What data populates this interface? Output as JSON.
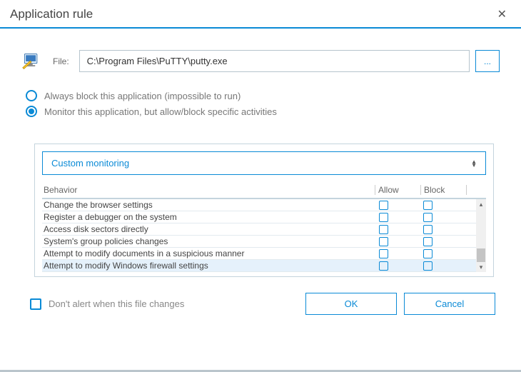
{
  "colors": {
    "accent": "#0a8ad6",
    "border": "#b6c4cd",
    "text_muted": "#777",
    "highlight_row": "#e5f1fb"
  },
  "titlebar": {
    "title": "Application rule",
    "close_glyph": "✕"
  },
  "file": {
    "label": "File:",
    "path": "C:\\Program Files\\PuTTY\\putty.exe",
    "browse_label": "..."
  },
  "mode": {
    "selected": 1,
    "options": [
      "Always block this application (impossible to run)",
      "Monitor this application, but allow/block specific activities"
    ]
  },
  "monitoring": {
    "dropdown_label": "Custom monitoring",
    "columns": {
      "behavior": "Behavior",
      "allow": "Allow",
      "block": "Block"
    },
    "rows": [
      {
        "label": "Change the browser settings",
        "allow": false,
        "block": false,
        "highlight": false
      },
      {
        "label": "Register a debugger on the system",
        "allow": false,
        "block": false,
        "highlight": false
      },
      {
        "label": "Access disk sectors directly",
        "allow": false,
        "block": false,
        "highlight": false
      },
      {
        "label": "System's group policies changes",
        "allow": false,
        "block": false,
        "highlight": false
      },
      {
        "label": "Attempt to modify documents in a suspicious manner",
        "allow": false,
        "block": false,
        "highlight": false
      },
      {
        "label": "Attempt to modify Windows firewall settings",
        "allow": false,
        "block": false,
        "highlight": true
      }
    ],
    "scroll": {
      "thumb_pos": 0.78,
      "thumb_size": 0.2
    }
  },
  "footer": {
    "dont_alert_label": "Don't alert when this file changes",
    "dont_alert_checked": false,
    "ok_label": "OK",
    "cancel_label": "Cancel"
  }
}
